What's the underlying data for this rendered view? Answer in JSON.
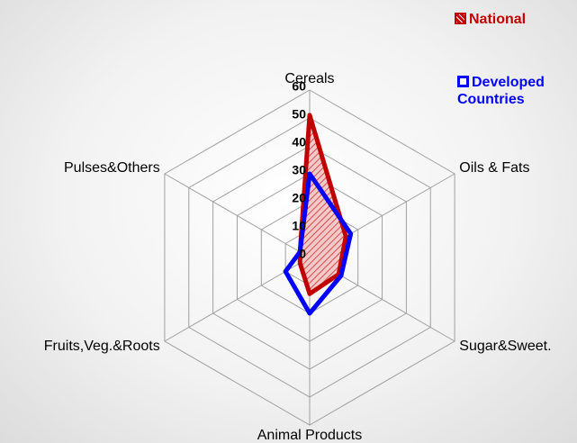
{
  "chart_data": {
    "type": "radar",
    "categories": [
      "Cereals",
      "Oils & Fats",
      "Sugar&Sweet.",
      "Animal Products",
      "Fruits,Veg.&Roots",
      "Pulses&Others"
    ],
    "series": [
      {
        "name": "National",
        "color": "#c00000",
        "values": [
          51,
          15,
          12,
          13,
          4,
          4
        ]
      },
      {
        "name": "Developed Countries",
        "color": "#0000ff",
        "values": [
          30,
          17,
          13,
          20,
          10,
          4
        ]
      }
    ],
    "ylim": [
      0,
      60
    ],
    "yticks": [
      0,
      10,
      20,
      30,
      40,
      50,
      60
    ],
    "grid": true
  }
}
